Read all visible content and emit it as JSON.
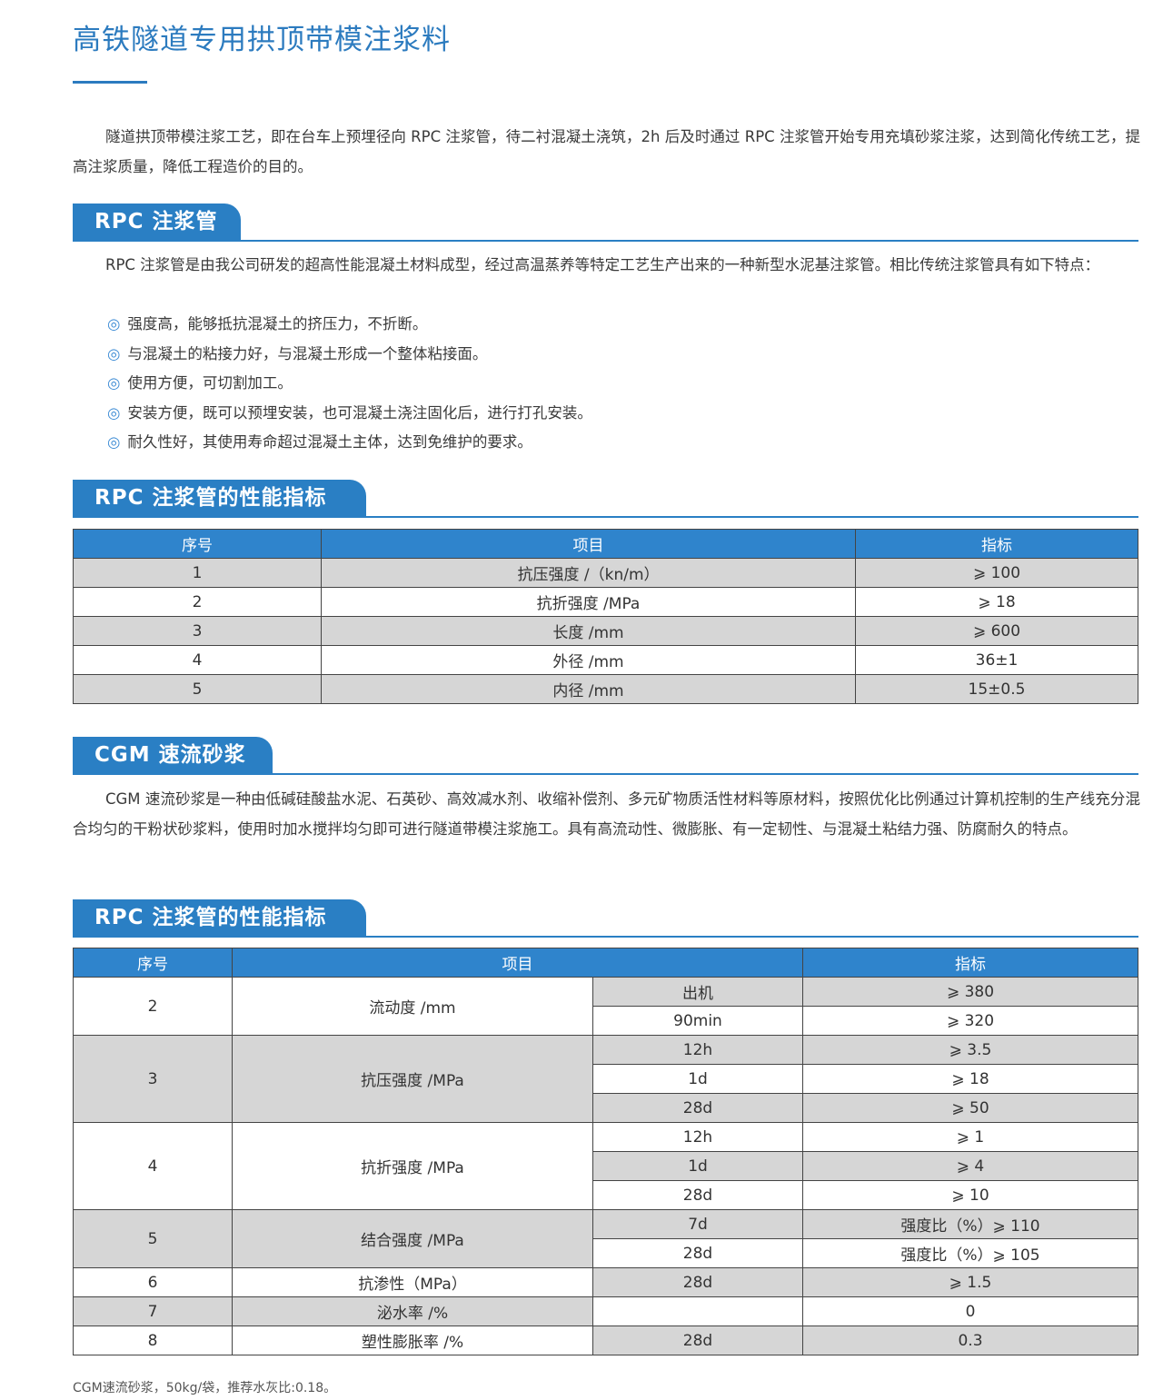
{
  "title": "高铁隧道专用拱顶带模注浆料",
  "intro": "隧道拱顶带模注浆工艺，即在台车上预埋径向 RPC 注浆管，待二衬混凝土浇筑，2h 后及时通过 RPC 注浆管开始专用充填砂浆注浆，达到简化传统工艺，提高注浆质量，降低工程造价的目的。",
  "colors": {
    "accent": "#2a7fc4",
    "table_header": "#2f84cc",
    "row_shade": "#d6d6d6"
  },
  "section_rpc": {
    "heading": "RPC 注浆管",
    "paragraph": "RPC 注浆管是由我公司研发的超高性能混凝土材料成型，经过高温蒸养等特定工艺生产出来的一种新型水泥基注浆管。相比传统注浆管具有如下特点：",
    "bullet_icon": "◎",
    "bullets": [
      "强度高，能够抵抗混凝土的挤压力，不折断。",
      "与混凝土的粘接力好，与混凝土形成一个整体粘接面。",
      "使用方便，可切割加工。",
      "安装方便，既可以预埋安装，也可混凝土浇注固化后，进行打孔安装。",
      "耐久性好，其使用寿命超过混凝土主体，达到免维护的要求。"
    ]
  },
  "table1": {
    "heading": "RPC 注浆管的性能指标",
    "headers": [
      "序号",
      "项目",
      "指标"
    ],
    "rows": [
      [
        "1",
        "抗压强度 /（kn/m）",
        "⩾ 100"
      ],
      [
        "2",
        "抗折强度 /MPa",
        "⩾ 18"
      ],
      [
        "3",
        "长度 /mm",
        "⩾ 600"
      ],
      [
        "4",
        "外径 /mm",
        "36±1"
      ],
      [
        "5",
        "内径 /mm",
        "15±0.5"
      ]
    ]
  },
  "section_cgm": {
    "heading": "CGM 速流砂浆",
    "paragraph": "CGM 速流砂浆是一种由低碱硅酸盐水泥、石英砂、高效减水剂、收缩补偿剂、多元矿物质活性材料等原材料，按照优化比例通过计算机控制的生产线充分混合均匀的干粉状砂浆料，使用时加水搅拌均匀即可进行隧道带模注浆施工。具有高流动性、微膨胀、有一定韧性、与混凝土粘结力强、防腐耐久的特点。"
  },
  "table2": {
    "heading": "RPC 注浆管的性能指标",
    "headers": [
      "序号",
      "项目",
      "指标"
    ],
    "groups": [
      {
        "no": "2",
        "item": "流动度 /mm",
        "subs": [
          [
            "出机",
            "⩾ 380"
          ],
          [
            "90min",
            "⩾ 320"
          ]
        ]
      },
      {
        "no": "3",
        "item": "抗压强度 /MPa",
        "subs": [
          [
            "12h",
            "⩾ 3.5"
          ],
          [
            "1d",
            "⩾ 18"
          ],
          [
            "28d",
            "⩾ 50"
          ]
        ]
      },
      {
        "no": "4",
        "item": "抗折强度 /MPa",
        "subs": [
          [
            "12h",
            "⩾ 1"
          ],
          [
            "1d",
            "⩾ 4"
          ],
          [
            "28d",
            "⩾ 10"
          ]
        ]
      },
      {
        "no": "5",
        "item": "结合强度 /MPa",
        "subs": [
          [
            "7d",
            "强度比（%）⩾ 110"
          ],
          [
            "28d",
            "强度比（%）⩾ 105"
          ]
        ]
      },
      {
        "no": "6",
        "item": "抗渗性（MPa）",
        "subs": [
          [
            "28d",
            "⩾ 1.5"
          ]
        ]
      },
      {
        "no": "7",
        "item": "泌水率 /%",
        "subs": [
          [
            "",
            "0"
          ]
        ]
      },
      {
        "no": "8",
        "item": "塑性膨胀率 /%",
        "subs": [
          [
            "28d",
            "0.3"
          ]
        ]
      }
    ],
    "note": "CGM速流砂浆，50kg/袋，推荐水灰比:0.18。"
  }
}
